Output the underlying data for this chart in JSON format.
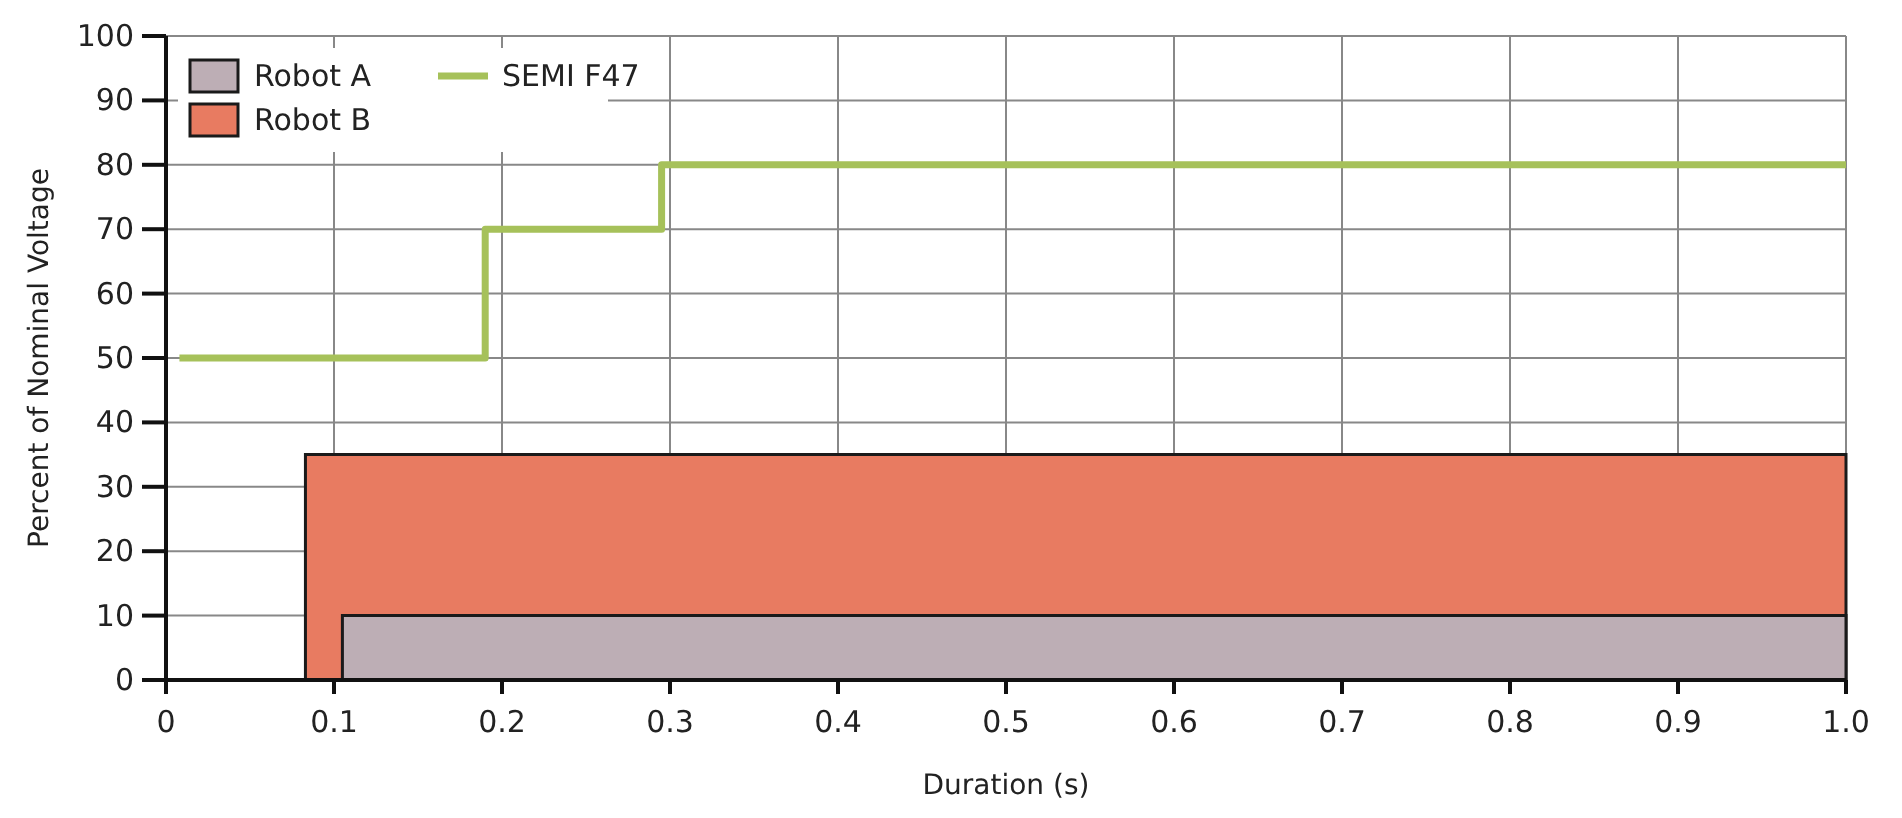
{
  "chart_data": {
    "type": "area",
    "xlabel": "Duration (s)",
    "ylabel": "Percent of Nominal Voltage",
    "xlim": [
      0,
      1
    ],
    "xticks": [
      0,
      0.1,
      0.2,
      0.3,
      0.4,
      0.5,
      0.6,
      0.7,
      0.8,
      0.9,
      {
        "value": 1,
        "label": "1.0"
      }
    ],
    "ylim": [
      0,
      100
    ],
    "yticks": [
      0,
      10,
      20,
      30,
      40,
      50,
      60,
      70,
      80,
      90,
      100
    ],
    "grid": true,
    "legend": "top left",
    "line_style": "solid",
    "marker": "none",
    "series": [
      {
        "name": "Robot B",
        "color": "#e87b61",
        "x": [
          0.083,
          1
        ],
        "values": [
          35,
          35
        ]
      },
      {
        "name": "Robot A",
        "color": "#bdaeb5",
        "x": [
          0.105,
          1
        ],
        "values": [
          10,
          10
        ]
      },
      {
        "name": "SEMI F47",
        "type": "step",
        "color": "#a6c15a",
        "x": [
          0.008,
          0.19,
          0.295,
          1
        ],
        "values": [
          50,
          70,
          80,
          80
        ]
      }
    ]
  }
}
